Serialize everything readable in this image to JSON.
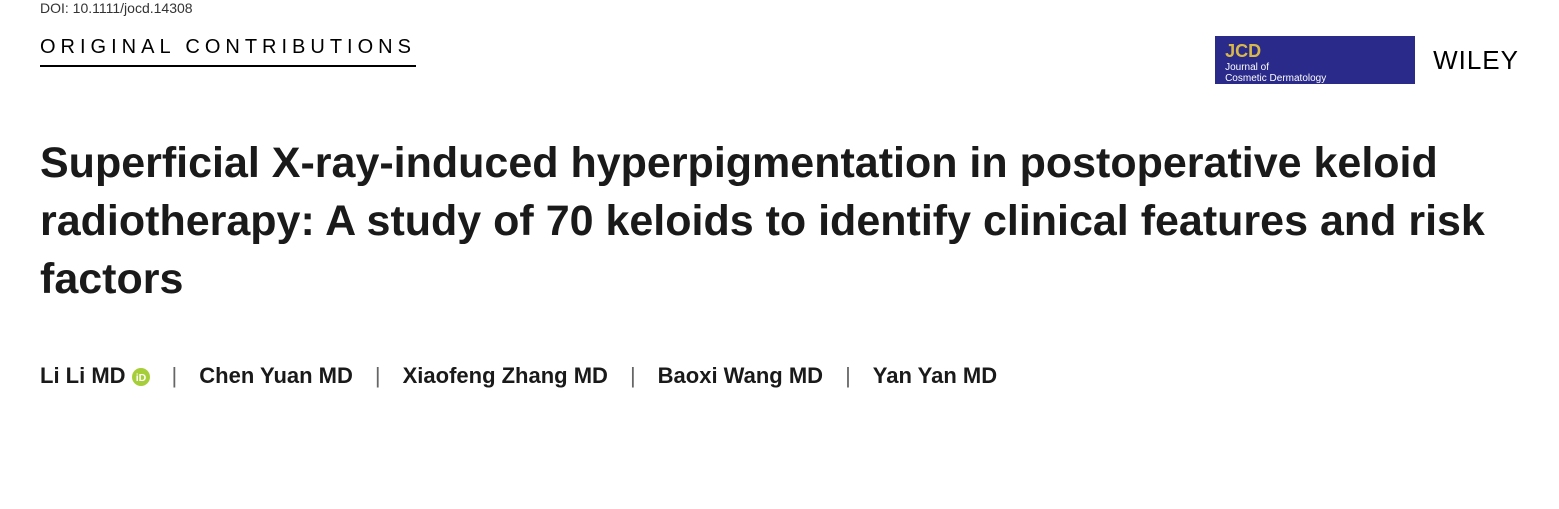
{
  "doi": "DOI: 10.1111/jocd.14308",
  "section_label": "ORIGINAL CONTRIBUTIONS",
  "journal_badge": {
    "abbr": "JCD",
    "line1": "Journal of",
    "line2": "Cosmetic Dermatology",
    "bg_color": "#2a2a8a",
    "abbr_color": "#d9b84a",
    "text_color": "#ffffff"
  },
  "publisher": "WILEY",
  "title": "Superficial X-ray-induced hyperpigmentation in postoperative keloid radiotherapy: A study of 70 keloids to identify clinical features and risk factors",
  "authors": [
    {
      "name": "Li Li MD",
      "orcid": true
    },
    {
      "name": "Chen Yuan MD",
      "orcid": false
    },
    {
      "name": "Xiaofeng Zhang MD",
      "orcid": false
    },
    {
      "name": "Baoxi Wang MD",
      "orcid": false
    },
    {
      "name": "Yan Yan MD",
      "orcid": false
    }
  ],
  "colors": {
    "text": "#1a1a1a",
    "orcid_green": "#a6ce39",
    "separator": "#666666"
  }
}
